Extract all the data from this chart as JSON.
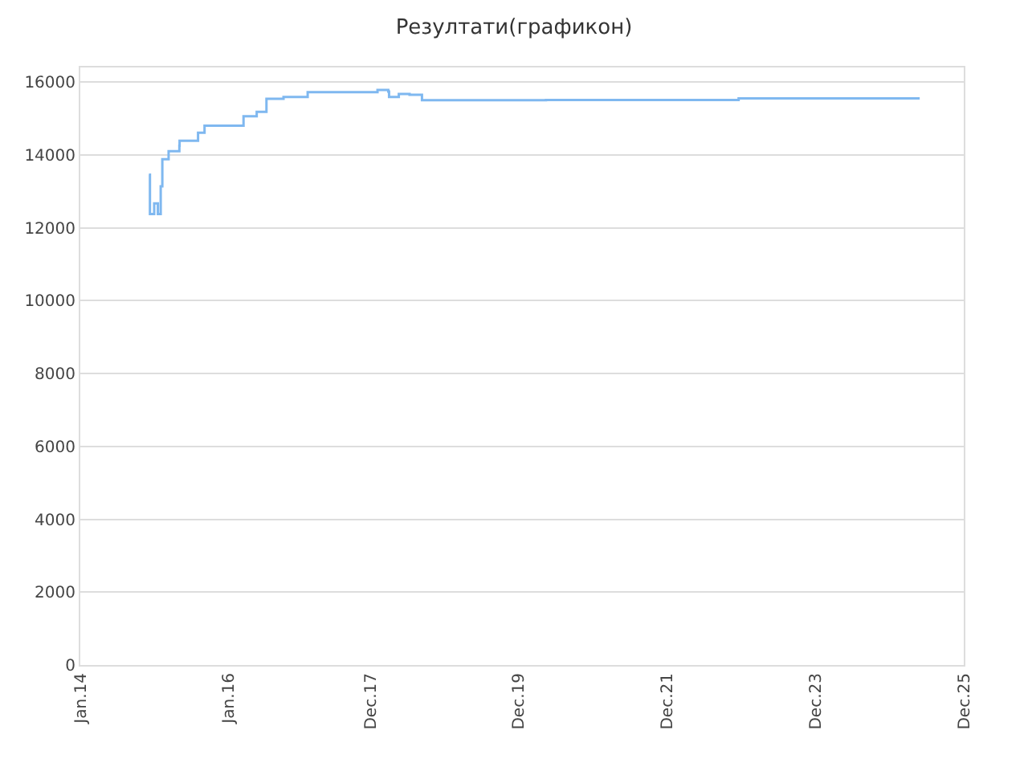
{
  "chart_data": {
    "type": "step",
    "title": "Резултати(графикон)",
    "x": [
      "2014-12-05",
      "2014-12-10",
      "2014-12-31",
      "2015-01-18",
      "2015-02-01",
      "2015-02-09",
      "2015-03-12",
      "2015-05-04",
      "2015-05-05",
      "2015-08-04",
      "2015-09-05",
      "2016-01-22",
      "2016-03-15",
      "2016-05-19",
      "2016-07-06",
      "2016-09-28",
      "2017-01-25",
      "2018-01-04",
      "2018-02-26",
      "2018-03-02",
      "2018-04-19",
      "2018-06-11",
      "2018-08-11",
      "2020-04-13",
      "2022-11-18",
      "2025-04-28"
    ],
    "series": [
      {
        "color": "#7fb8f0",
        "values": [
          13460,
          12380,
          12670,
          12380,
          13140,
          13880,
          14100,
          14250,
          14390,
          14610,
          14800,
          14800,
          15060,
          15180,
          15540,
          15590,
          15720,
          15780,
          15740,
          15590,
          15670,
          15650,
          15500,
          15510,
          15550,
          15550
        ]
      }
    ],
    "xlim": [
      "2014-01-01",
      "2025-12-01"
    ],
    "xticks": [
      {
        "value": "2014-01-01",
        "label": "Jan.14"
      },
      {
        "value": "2016-01-01",
        "label": "Jan.16"
      },
      {
        "value": "2017-12-01",
        "label": "Dec.17"
      },
      {
        "value": "2019-12-01",
        "label": "Dec.19"
      },
      {
        "value": "2021-12-01",
        "label": "Dec.21"
      },
      {
        "value": "2023-12-01",
        "label": "Dec.23"
      },
      {
        "value": "2025-12-01",
        "label": "Dec.25"
      }
    ],
    "ylim": [
      0,
      16400
    ],
    "yticks": [
      0,
      2000,
      4000,
      6000,
      8000,
      10000,
      12000,
      14000,
      16000
    ],
    "grid": "y",
    "legend": false,
    "marker": "none",
    "line_style": "solid"
  }
}
